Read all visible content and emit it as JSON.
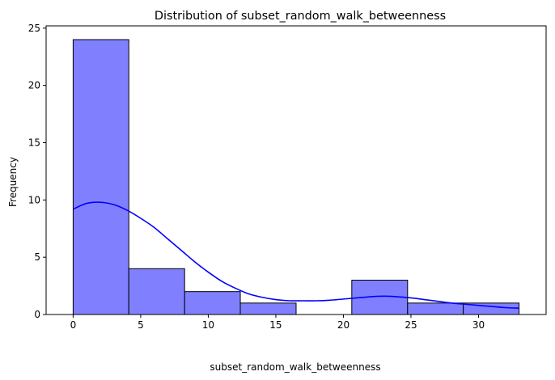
{
  "chart_data": {
    "type": "bar",
    "title": "Distribution of subset_random_walk_betweenness",
    "xlabel": "subset_random_walk_betweenness",
    "ylabel": "Frequency",
    "xlim": [
      -2.0,
      35.0
    ],
    "ylim": [
      0,
      25.2
    ],
    "xticks": [
      0,
      5,
      10,
      15,
      20,
      25,
      30
    ],
    "yticks": [
      0,
      5,
      10,
      15,
      20,
      25
    ],
    "bins": [
      {
        "x0": 0.0,
        "x1": 4.12,
        "count": 24
      },
      {
        "x0": 4.12,
        "x1": 8.25,
        "count": 4
      },
      {
        "x0": 8.25,
        "x1": 12.37,
        "count": 2
      },
      {
        "x0": 12.37,
        "x1": 16.5,
        "count": 1
      },
      {
        "x0": 16.5,
        "x1": 20.62,
        "count": 0
      },
      {
        "x0": 20.62,
        "x1": 24.75,
        "count": 3
      },
      {
        "x0": 24.75,
        "x1": 28.87,
        "count": 1
      },
      {
        "x0": 28.87,
        "x1": 33.0,
        "count": 1
      }
    ],
    "kde": {
      "x": [
        0,
        1,
        2,
        3,
        4,
        5,
        6,
        7,
        8,
        9,
        10,
        11,
        12,
        13,
        14,
        15,
        16,
        17,
        18,
        19,
        20,
        21,
        22,
        23,
        24,
        25,
        26,
        27,
        28,
        29,
        30,
        31,
        32,
        33
      ],
      "y": [
        9.2,
        9.7,
        9.8,
        9.6,
        9.1,
        8.4,
        7.6,
        6.6,
        5.6,
        4.6,
        3.7,
        2.9,
        2.3,
        1.8,
        1.5,
        1.3,
        1.2,
        1.2,
        1.2,
        1.25,
        1.35,
        1.45,
        1.55,
        1.6,
        1.55,
        1.45,
        1.3,
        1.15,
        1.0,
        0.9,
        0.8,
        0.7,
        0.6,
        0.55
      ]
    },
    "colors": {
      "bar_fill": "#8080ff",
      "bar_edge": "#000000",
      "kde_line": "#0000ff"
    },
    "grid": false,
    "legend": false
  }
}
